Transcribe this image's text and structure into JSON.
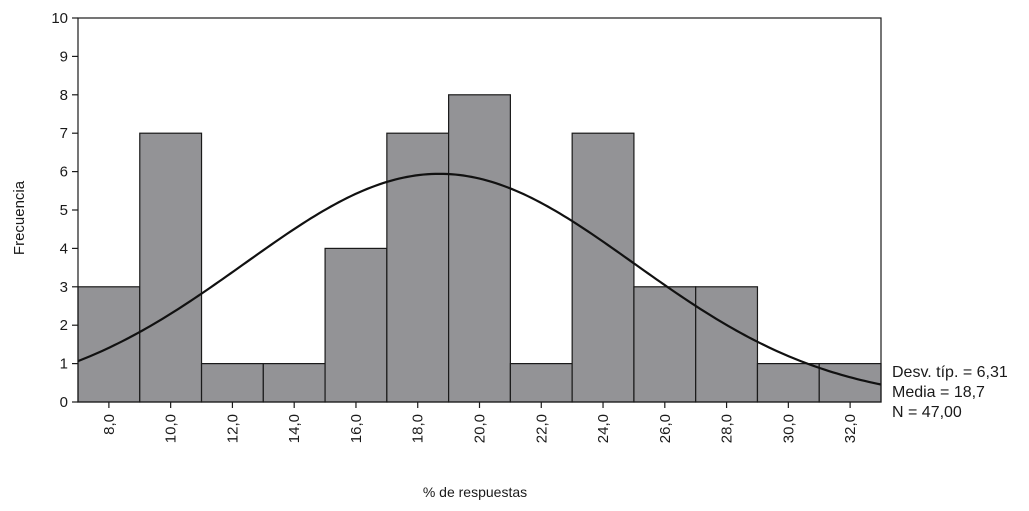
{
  "chart_data": {
    "type": "bar",
    "histogram": true,
    "bins": [
      {
        "center": 8.0,
        "count": 3
      },
      {
        "center": 10.0,
        "count": 7
      },
      {
        "center": 12.0,
        "count": 1
      },
      {
        "center": 14.0,
        "count": 1
      },
      {
        "center": 16.0,
        "count": 4
      },
      {
        "center": 18.0,
        "count": 7
      },
      {
        "center": 20.0,
        "count": 8
      },
      {
        "center": 22.0,
        "count": 1
      },
      {
        "center": 24.0,
        "count": 7
      },
      {
        "center": 26.0,
        "count": 3
      },
      {
        "center": 28.0,
        "count": 3
      },
      {
        "center": 30.0,
        "count": 1
      },
      {
        "center": 32.0,
        "count": 1
      }
    ],
    "bin_width": 2.0,
    "xlim": [
      7.0,
      33.0
    ],
    "ylim": [
      0,
      10
    ],
    "yticks": [
      "0",
      "1",
      "2",
      "3",
      "4",
      "5",
      "6",
      "7",
      "8",
      "9",
      "10"
    ],
    "xtick_labels": [
      "8,0",
      "10,0",
      "12,0",
      "14,0",
      "16,0",
      "18,0",
      "20,0",
      "22,0",
      "24,0",
      "26,0",
      "28,0",
      "30,0",
      "32,0"
    ],
    "xlabel": "% de respuestas",
    "ylabel": "Frecuencia",
    "normal_curve": {
      "mean": 18.7,
      "sd": 6.31,
      "n": 47
    },
    "stats": [
      "Desv. típ. = 6,31",
      "Media = 18,7",
      "N = 47,00"
    ],
    "bar_color": "#939396",
    "curve_color": "#111111"
  }
}
